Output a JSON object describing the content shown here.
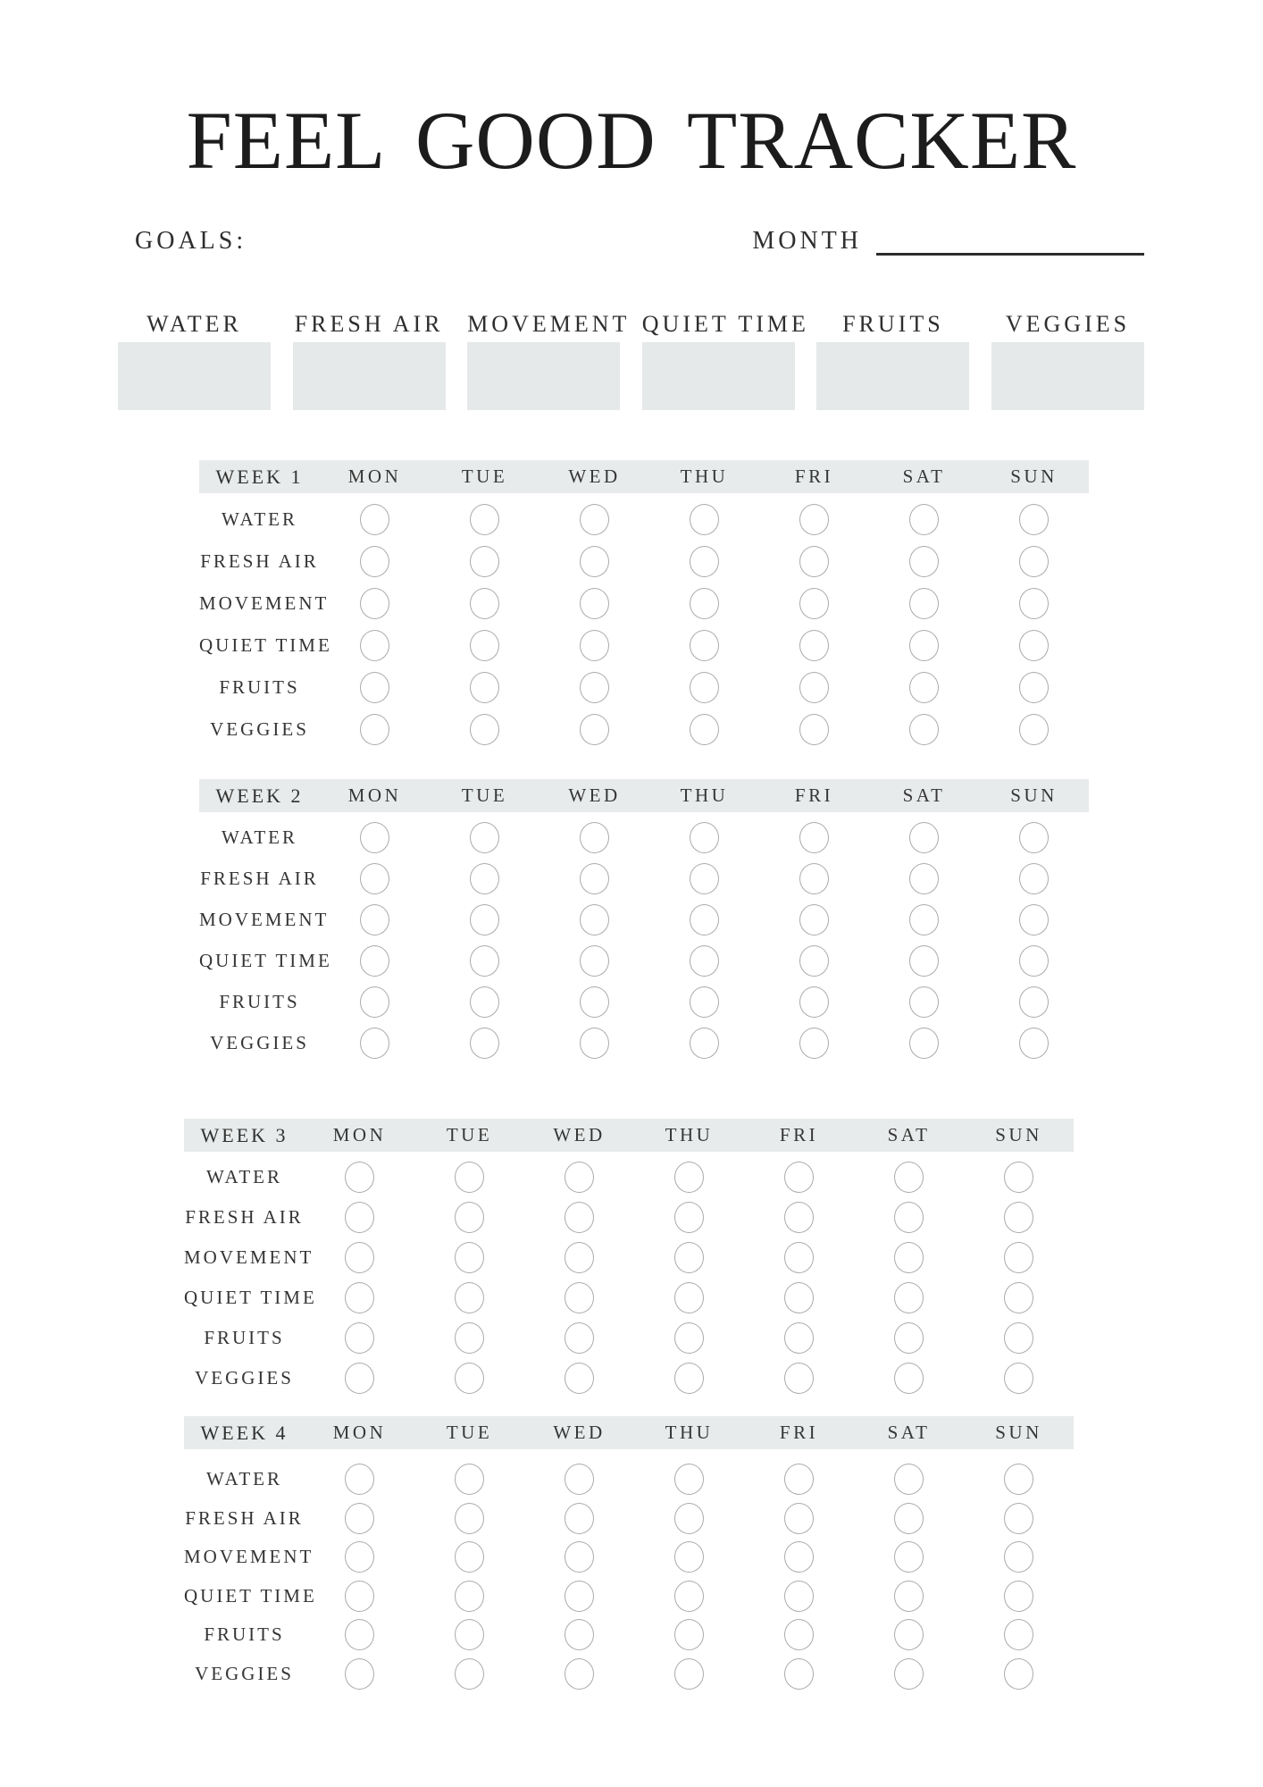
{
  "title": "FEEL GOOD TRACKER",
  "form": {
    "goals_label": "GOALS:",
    "month_label": "MONTH"
  },
  "categories": [
    "WATER",
    "FRESH AIR",
    "MOVEMENT",
    "QUIET TIME",
    "FRUITS",
    "VEGGIES"
  ],
  "days": [
    "MON",
    "TUE",
    "WED",
    "THU",
    "FRI",
    "SAT",
    "SUN"
  ],
  "habits": [
    "WATER",
    "FRESH AIR",
    "MOVEMENT",
    "QUIET TIME",
    "FRUITS",
    "VEGGIES"
  ],
  "weeks": [
    {
      "label": "WEEK 1"
    },
    {
      "label": "WEEK 2"
    },
    {
      "label": "WEEK 3"
    },
    {
      "label": "WEEK 4"
    }
  ],
  "colors": {
    "page_bg": "#ffffff",
    "band_bg": "#e8ebeb",
    "box_bg": "#e6e9e9",
    "circle_border": "#a9acac",
    "rule": "#2c2c2c",
    "text_dark": "#1c1c1c",
    "text": "#353535"
  }
}
